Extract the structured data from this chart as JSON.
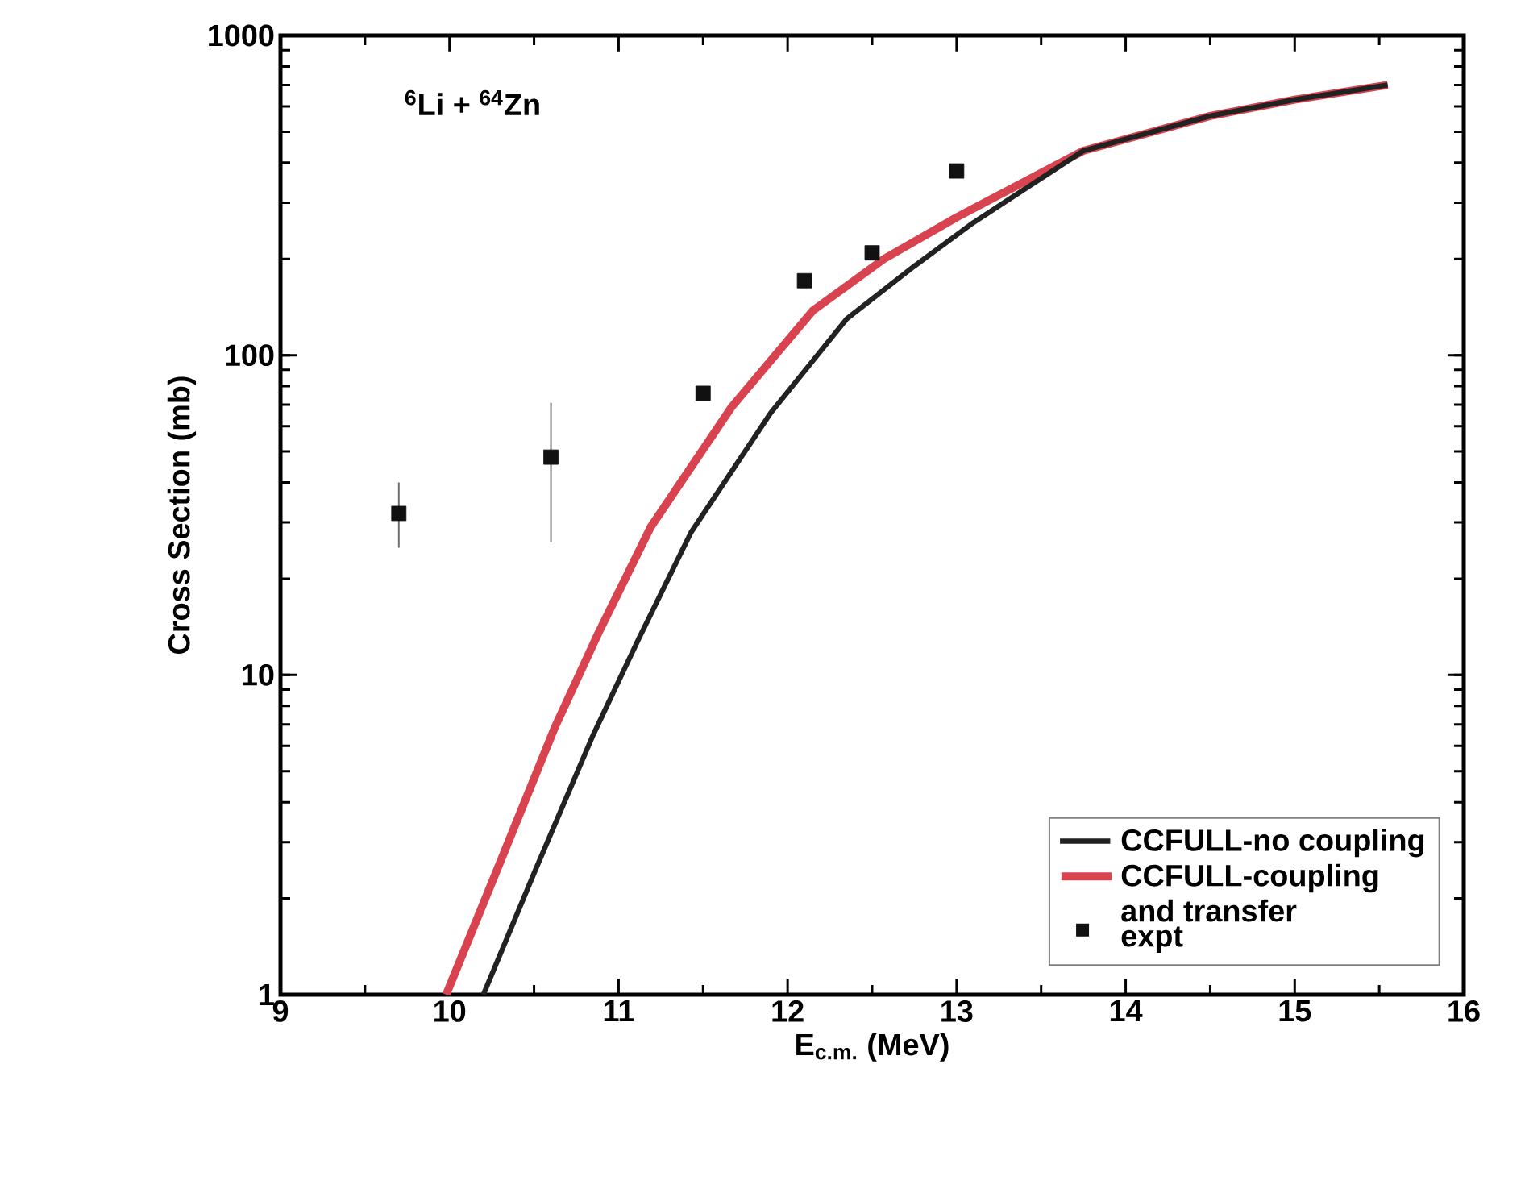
{
  "chart_data": {
    "type": "line",
    "xlabel": "E$_{c.m.}$ (MeV)",
    "ylabel": "Cross Section (mb)",
    "annotations": [
      "$^{6}$Li + $^{64}$Zn"
    ],
    "xlim": [
      9,
      16
    ],
    "xticks": [
      9,
      10,
      11,
      12,
      13,
      14,
      15,
      16
    ],
    "ylim": [
      1,
      1000
    ],
    "yticks": [
      1,
      10,
      100,
      1000
    ],
    "log": "y",
    "legend": "bottom right",
    "grid": false,
    "series": [
      {
        "name": "CCFULL-no coupling",
        "color": "#222222",
        "x": [
          10.2,
          10.5,
          10.85,
          11.12,
          11.43,
          11.9,
          12.35,
          12.75,
          13.1,
          13.75,
          14.5,
          15.0,
          15.55
        ],
        "values": [
          1,
          2.4,
          6.5,
          13,
          28,
          66,
          130,
          190,
          260,
          436,
          560,
          630,
          700
        ]
      },
      {
        "name": "CCFULL-coupling and transfer",
        "color": "#d9434f",
        "x": [
          9.98,
          10.3,
          10.62,
          10.88,
          11.19,
          11.67,
          12.15,
          12.57,
          13.0,
          13.75,
          14.5,
          15.0,
          15.55
        ],
        "values": [
          1,
          2.6,
          6.8,
          13.5,
          29,
          69,
          138,
          200,
          270,
          436,
          560,
          630,
          700
        ]
      },
      {
        "name": "expt",
        "type": "scatter",
        "marker": "square",
        "color": "#111111",
        "x": [
          9.7,
          10.6,
          11.5,
          12.1,
          12.5,
          13.0
        ],
        "values": [
          32,
          48,
          76,
          171,
          209,
          377
        ],
        "errors": [
          [
            25,
            40
          ],
          [
            26,
            71
          ],
          null,
          null,
          null,
          null
        ]
      }
    ]
  }
}
